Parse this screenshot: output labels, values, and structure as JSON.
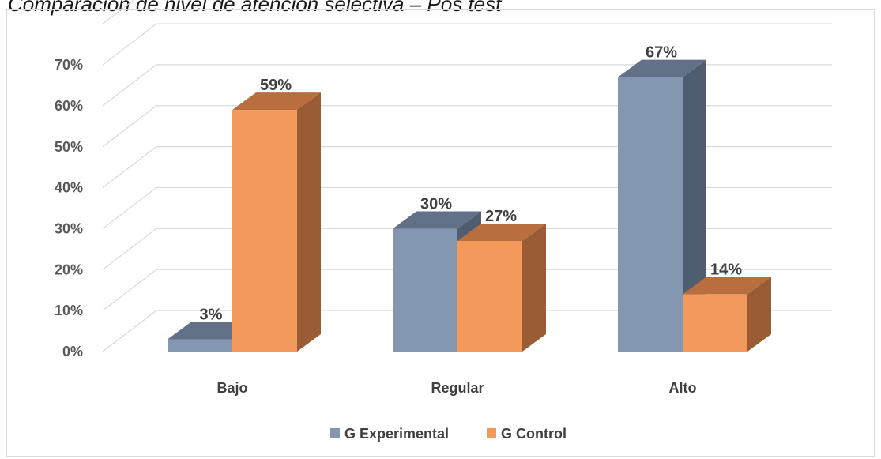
{
  "chart_data": {
    "type": "bar",
    "title": "Comparación de nivel de atención selectiva – Pos test",
    "categories": [
      "Bajo",
      "Regular",
      "Alto"
    ],
    "series": [
      {
        "name": "G Experimental",
        "values": [
          3,
          30,
          67
        ],
        "labels": [
          "3%",
          "30%",
          "67%"
        ],
        "color": "#8497b0",
        "side_color": "#4f5d70",
        "top_color": "#627188"
      },
      {
        "name": "G Control",
        "values": [
          59,
          27,
          14
        ],
        "labels": [
          "59%",
          "27%",
          "14%"
        ],
        "color": "#f4995c",
        "side_color": "#9a5c34",
        "top_color": "#b86e3f"
      }
    ],
    "yticks": [
      "0%",
      "10%",
      "20%",
      "30%",
      "40%",
      "50%",
      "60%",
      "70%"
    ],
    "ylim": [
      0,
      70
    ],
    "grid": true,
    "legend": "bottom",
    "style": "3d-clustered-column"
  }
}
